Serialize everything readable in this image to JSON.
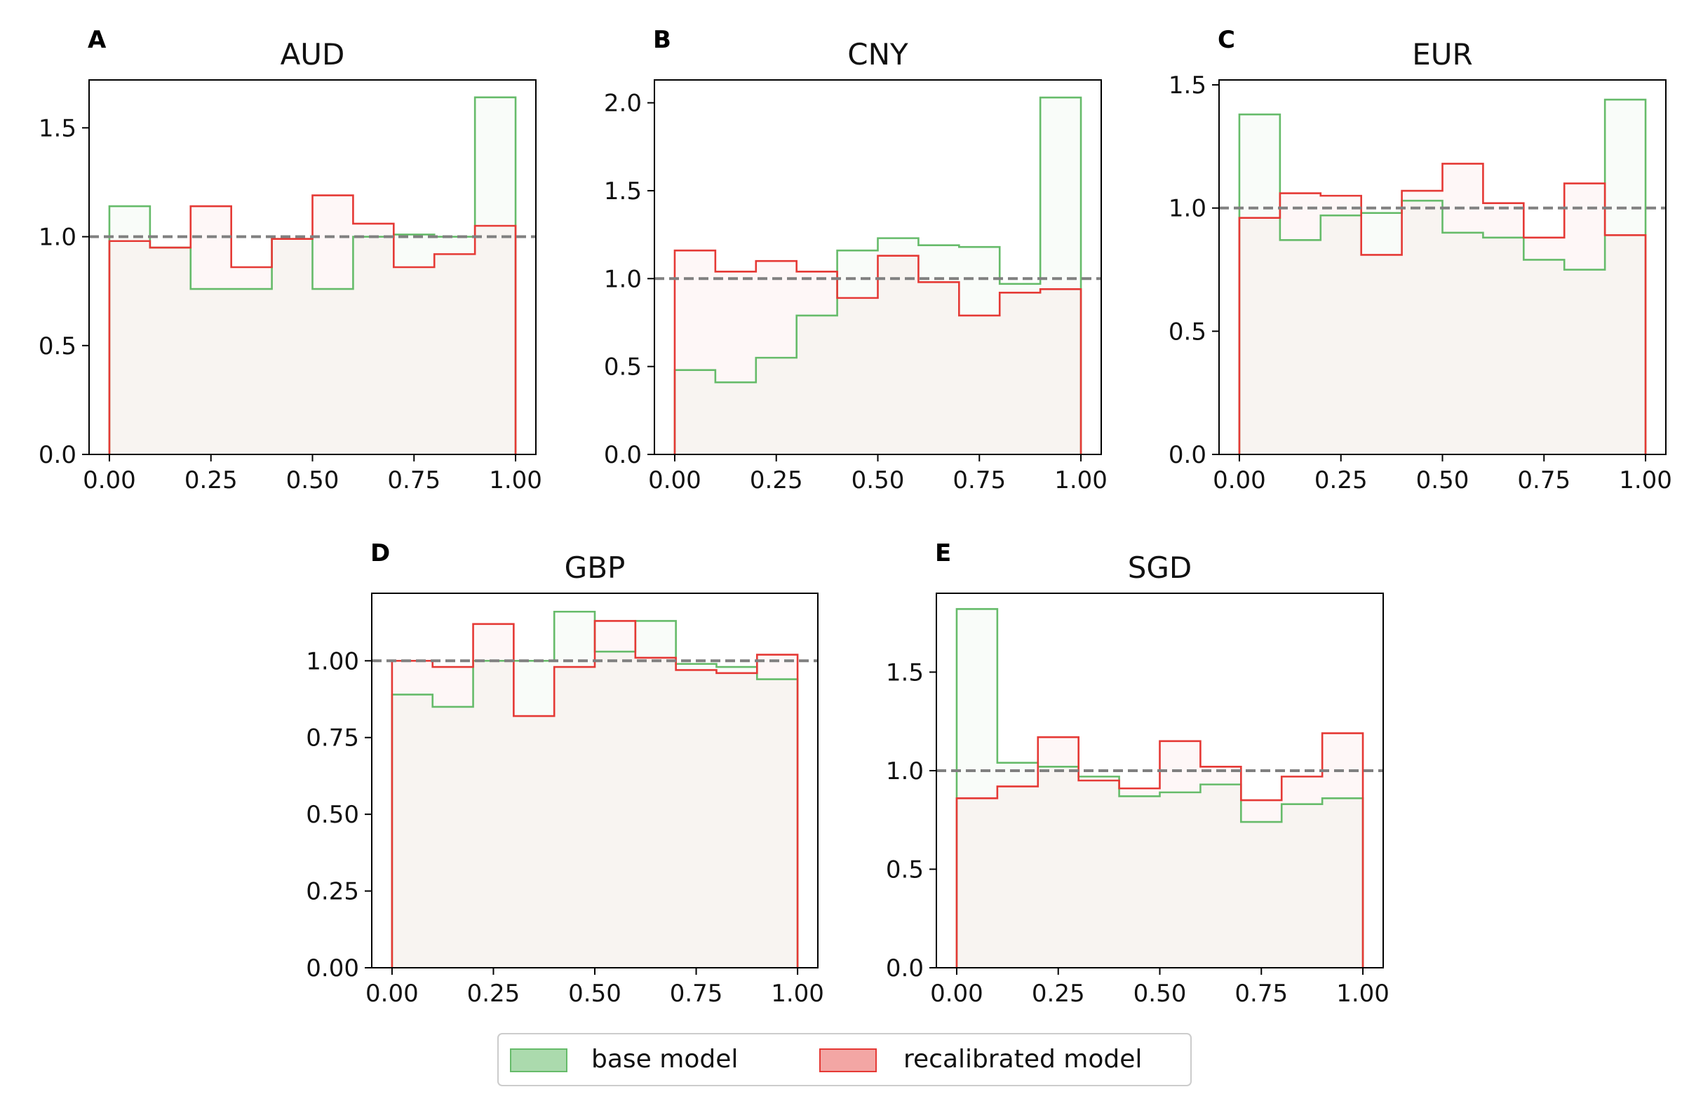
{
  "chart_data": [
    {
      "panel_label": "A",
      "title": "AUD",
      "type": "histogram",
      "bin_edges": [
        0.0,
        0.1,
        0.2,
        0.3,
        0.4,
        0.5,
        0.6,
        0.7,
        0.8,
        0.9,
        1.0
      ],
      "series": [
        {
          "name": "base model",
          "values": [
            1.14,
            0.95,
            0.76,
            0.76,
            0.99,
            0.76,
            1.0,
            1.01,
            1.0,
            1.64
          ]
        },
        {
          "name": "recalibrated model",
          "values": [
            0.98,
            0.95,
            1.14,
            0.86,
            0.99,
            1.19,
            1.06,
            0.86,
            0.92,
            1.05
          ]
        }
      ],
      "reference_line": 1.0,
      "xlim": [
        -0.05,
        1.05
      ],
      "ylim": [
        0,
        1.72
      ],
      "xticks": [
        "0.00",
        "0.25",
        "0.50",
        "0.75",
        "1.00"
      ],
      "yticks": [
        "0.0",
        "0.5",
        "1.0",
        "1.5"
      ]
    },
    {
      "panel_label": "B",
      "title": "CNY",
      "type": "histogram",
      "bin_edges": [
        0.0,
        0.1,
        0.2,
        0.3,
        0.4,
        0.5,
        0.6,
        0.7,
        0.8,
        0.9,
        1.0
      ],
      "series": [
        {
          "name": "base model",
          "values": [
            0.48,
            0.41,
            0.55,
            0.79,
            1.16,
            1.23,
            1.19,
            1.18,
            0.97,
            2.03
          ]
        },
        {
          "name": "recalibrated model",
          "values": [
            1.16,
            1.04,
            1.1,
            1.04,
            0.89,
            1.13,
            0.98,
            0.79,
            0.92,
            0.94
          ]
        }
      ],
      "reference_line": 1.0,
      "xlim": [
        -0.05,
        1.05
      ],
      "ylim": [
        0,
        2.13
      ],
      "xticks": [
        "0.00",
        "0.25",
        "0.50",
        "0.75",
        "1.00"
      ],
      "yticks": [
        "0.0",
        "0.5",
        "1.0",
        "1.5",
        "2.0"
      ]
    },
    {
      "panel_label": "C",
      "title": "EUR",
      "type": "histogram",
      "bin_edges": [
        0.0,
        0.1,
        0.2,
        0.3,
        0.4,
        0.5,
        0.6,
        0.7,
        0.8,
        0.9,
        1.0
      ],
      "series": [
        {
          "name": "base model",
          "values": [
            1.38,
            0.87,
            0.97,
            0.98,
            1.03,
            0.9,
            0.88,
            0.79,
            0.75,
            1.44
          ]
        },
        {
          "name": "recalibrated model",
          "values": [
            0.96,
            1.06,
            1.05,
            0.81,
            1.07,
            1.18,
            1.02,
            0.88,
            1.1,
            0.89
          ]
        }
      ],
      "reference_line": 1.0,
      "xlim": [
        -0.05,
        1.05
      ],
      "ylim": [
        0,
        1.52
      ],
      "xticks": [
        "0.00",
        "0.25",
        "0.50",
        "0.75",
        "1.00"
      ],
      "yticks": [
        "0.0",
        "0.5",
        "1.0",
        "1.5"
      ]
    },
    {
      "panel_label": "D",
      "title": "GBP",
      "type": "histogram",
      "bin_edges": [
        0.0,
        0.1,
        0.2,
        0.3,
        0.4,
        0.5,
        0.6,
        0.7,
        0.8,
        0.9,
        1.0
      ],
      "series": [
        {
          "name": "base model",
          "values": [
            0.89,
            0.85,
            1.0,
            1.0,
            1.16,
            1.03,
            1.13,
            0.99,
            0.98,
            0.94
          ]
        },
        {
          "name": "recalibrated model",
          "values": [
            1.0,
            0.98,
            1.12,
            0.82,
            0.98,
            1.13,
            1.01,
            0.97,
            0.96,
            1.02
          ]
        }
      ],
      "reference_line": 1.0,
      "xlim": [
        -0.05,
        1.05
      ],
      "ylim": [
        0,
        1.22
      ],
      "xticks": [
        "0.00",
        "0.25",
        "0.50",
        "0.75",
        "1.00"
      ],
      "yticks": [
        "0.00",
        "0.25",
        "0.50",
        "0.75",
        "1.00"
      ]
    },
    {
      "panel_label": "E",
      "title": "SGD",
      "type": "histogram",
      "bin_edges": [
        0.0,
        0.1,
        0.2,
        0.3,
        0.4,
        0.5,
        0.6,
        0.7,
        0.8,
        0.9,
        1.0
      ],
      "series": [
        {
          "name": "base model",
          "values": [
            1.82,
            1.04,
            1.02,
            0.97,
            0.87,
            0.89,
            0.93,
            0.74,
            0.83,
            0.86
          ]
        },
        {
          "name": "recalibrated model",
          "values": [
            0.86,
            0.92,
            1.17,
            0.95,
            0.91,
            1.15,
            1.02,
            0.85,
            0.97,
            1.19
          ]
        }
      ],
      "reference_line": 1.0,
      "xlim": [
        -0.05,
        1.05
      ],
      "ylim": [
        0,
        1.9
      ],
      "xticks": [
        "0.00",
        "0.25",
        "0.50",
        "0.75",
        "1.00"
      ],
      "yticks": [
        "0.0",
        "0.5",
        "1.0",
        "1.5"
      ]
    }
  ],
  "legend": {
    "placement": "bottom-center",
    "entries": [
      {
        "label": "base model",
        "color": "#66bb6a"
      },
      {
        "label": "recalibrated model",
        "color": "#e53935"
      }
    ]
  },
  "colors": {
    "base": "#66bb6a",
    "recalibrated": "#e53935",
    "reference": "#808080",
    "fill": "#f7f6f2"
  }
}
